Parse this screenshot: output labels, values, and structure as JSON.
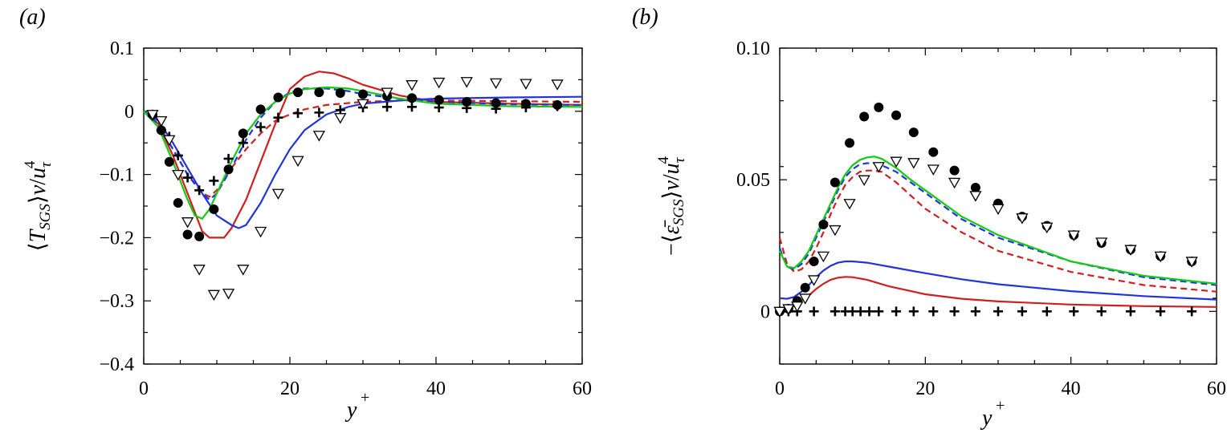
{
  "chart_data": [
    {
      "type": "line",
      "panel_label": "(a)",
      "xlabel": "y+",
      "ylabel": "⟨T_SGS⟩ν/u_τ^4",
      "xlim": [
        0,
        60
      ],
      "ylim": [
        -0.4,
        0.1
      ],
      "x_ticks": [
        0,
        20,
        40,
        60
      ],
      "y_ticks": [
        -0.4,
        -0.3,
        -0.2,
        -0.1,
        0,
        0.1
      ],
      "x_tick_labels": [
        "0",
        "20",
        "40",
        "60"
      ],
      "y_tick_labels": [
        "−0.4",
        "−0.3",
        "−0.2",
        "−0.1",
        "0",
        "0.1"
      ],
      "grid": false,
      "series": [
        {
          "style": "solid",
          "color": "#d11f1f",
          "x": [
            0,
            2,
            4,
            6,
            7,
            8,
            9,
            10,
            11,
            12,
            14,
            16,
            18,
            20,
            22,
            24,
            26,
            28,
            30,
            35,
            40,
            50,
            60
          ],
          "y": [
            0,
            -0.02,
            -0.07,
            -0.13,
            -0.16,
            -0.19,
            -0.2,
            -0.2,
            -0.2,
            -0.185,
            -0.14,
            -0.08,
            -0.02,
            0.035,
            0.055,
            0.063,
            0.06,
            0.052,
            0.042,
            0.025,
            0.015,
            0.012,
            0.01
          ]
        },
        {
          "style": "dashed",
          "color": "#d11f1f",
          "x": [
            0,
            2,
            4,
            6,
            8,
            9,
            10,
            12,
            14,
            16,
            18,
            20,
            22,
            25,
            30,
            35,
            40,
            50,
            60
          ],
          "y": [
            0,
            -0.02,
            -0.06,
            -0.1,
            -0.13,
            -0.135,
            -0.125,
            -0.09,
            -0.06,
            -0.035,
            -0.015,
            -0.005,
            0.003,
            0.01,
            0.015,
            0.017,
            0.017,
            0.016,
            0.015
          ]
        },
        {
          "style": "solid",
          "color": "#2233dd",
          "x": [
            0,
            2,
            4,
            6,
            8,
            10,
            12,
            13,
            14,
            16,
            18,
            20,
            22,
            25,
            28,
            30,
            35,
            40,
            50,
            60
          ],
          "y": [
            0,
            -0.015,
            -0.05,
            -0.09,
            -0.13,
            -0.165,
            -0.18,
            -0.185,
            -0.18,
            -0.145,
            -0.1,
            -0.06,
            -0.03,
            -0.005,
            0.007,
            0.012,
            0.017,
            0.02,
            0.022,
            0.023
          ]
        },
        {
          "style": "dashed",
          "color": "#2233dd",
          "x": [
            0,
            2,
            4,
            6,
            8,
            9,
            10,
            12,
            14,
            16,
            18,
            20,
            22,
            25,
            28,
            30,
            35,
            40,
            50,
            60
          ],
          "y": [
            0,
            -0.02,
            -0.06,
            -0.1,
            -0.13,
            -0.14,
            -0.13,
            -0.09,
            -0.045,
            -0.01,
            0.015,
            0.03,
            0.036,
            0.036,
            0.032,
            0.027,
            0.02,
            0.015,
            0.011,
            0.01
          ]
        },
        {
          "style": "solid",
          "color": "#11cc11",
          "x": [
            0,
            2,
            4,
            6,
            7,
            8,
            9,
            10,
            12,
            14,
            16,
            18,
            20,
            22,
            25,
            28,
            30,
            35,
            40,
            50,
            60
          ],
          "y": [
            0,
            -0.025,
            -0.08,
            -0.14,
            -0.165,
            -0.17,
            -0.155,
            -0.13,
            -0.08,
            -0.035,
            -0.005,
            0.015,
            0.028,
            0.035,
            0.038,
            0.036,
            0.032,
            0.02,
            0.012,
            0.008,
            0.007
          ]
        },
        {
          "style": "filled-circle",
          "color": "#000000",
          "x": [
            1.2,
            2.4,
            3.5,
            4.7,
            6,
            7.6,
            9.6,
            11.6,
            13.6,
            16,
            18.4,
            21.1,
            24,
            26.9,
            30,
            33.3,
            36.7,
            40.4,
            44.2,
            48.2,
            52.3,
            56.6
          ],
          "y": [
            -0.005,
            -0.03,
            -0.08,
            -0.145,
            -0.195,
            -0.198,
            -0.155,
            -0.092,
            -0.035,
            0.003,
            0.022,
            0.03,
            0.03,
            0.029,
            0.027,
            0.024,
            0.021,
            0.018,
            0.015,
            0.013,
            0.012,
            0.01
          ]
        },
        {
          "style": "plus",
          "color": "#000000",
          "x": [
            1.2,
            2.4,
            3.5,
            4.7,
            6,
            7.6,
            9.6,
            11.6,
            13.6,
            16,
            18.4,
            21.1,
            24,
            26.9,
            30,
            33.3,
            36.7,
            40.4,
            44.2,
            48.2,
            52.3,
            56.6
          ],
          "y": [
            -0.007,
            -0.03,
            -0.04,
            -0.07,
            -0.105,
            -0.125,
            -0.11,
            -0.075,
            -0.05,
            -0.025,
            -0.01,
            -0.003,
            -0.002,
            0.002,
            0.006,
            0.007,
            0.007,
            0.006,
            0.005,
            0.004,
            0.006,
            0.008
          ]
        },
        {
          "style": "open-triangle",
          "color": "#000000",
          "x": [
            1.2,
            2.4,
            3.5,
            4.7,
            6,
            7.6,
            9.6,
            11.6,
            13.6,
            16,
            18.4,
            21.1,
            24,
            26.9,
            30,
            33.3,
            36.7,
            40.4,
            44.2,
            48.2,
            52.3,
            56.6
          ],
          "y": [
            -0.005,
            -0.015,
            -0.045,
            -0.1,
            -0.175,
            -0.25,
            -0.29,
            -0.288,
            -0.25,
            -0.19,
            -0.13,
            -0.078,
            -0.038,
            -0.01,
            0.012,
            0.03,
            0.042,
            0.046,
            0.047,
            0.045,
            0.044,
            0.043
          ]
        }
      ]
    },
    {
      "type": "line",
      "panel_label": "(b)",
      "xlabel": "y+",
      "ylabel": "−⟨ε̄_SGS⟩ν/u_τ^4",
      "xlim": [
        0,
        60
      ],
      "ylim": [
        -0.02,
        0.1
      ],
      "x_ticks": [
        0,
        20,
        40,
        60
      ],
      "y_ticks": [
        0,
        0.05,
        0.1
      ],
      "x_tick_labels": [
        "0",
        "20",
        "40",
        "60"
      ],
      "y_tick_labels": [
        "0",
        "0.05",
        "0.10"
      ],
      "grid": false,
      "series": [
        {
          "style": "solid",
          "color": "#d11f1f",
          "x": [
            0,
            1,
            2,
            3,
            4,
            5,
            6,
            7,
            8,
            9,
            10,
            12,
            15,
            20,
            25,
            30,
            40,
            50,
            60
          ],
          "y": [
            0.001,
            0.0012,
            0.002,
            0.004,
            0.006,
            0.0085,
            0.0105,
            0.012,
            0.0128,
            0.0131,
            0.013,
            0.012,
            0.0095,
            0.0065,
            0.0048,
            0.0038,
            0.0026,
            0.002,
            0.0017
          ]
        },
        {
          "style": "dashed",
          "color": "#d11f1f",
          "x": [
            0,
            1,
            2,
            3,
            4,
            5,
            6,
            7,
            8,
            9,
            10,
            11,
            12,
            13,
            14,
            16,
            18,
            20,
            25,
            30,
            40,
            50,
            60
          ],
          "y": [
            0.028,
            0.018,
            0.015,
            0.016,
            0.019,
            0.024,
            0.03,
            0.037,
            0.043,
            0.048,
            0.051,
            0.053,
            0.0535,
            0.0535,
            0.053,
            0.049,
            0.044,
            0.039,
            0.03,
            0.023,
            0.015,
            0.01,
            0.0075
          ]
        },
        {
          "style": "solid",
          "color": "#2233dd",
          "x": [
            0,
            1,
            2,
            3,
            4,
            5,
            6,
            7,
            8,
            9,
            10,
            12,
            15,
            20,
            25,
            30,
            40,
            50,
            60
          ],
          "y": [
            0.005,
            0.0048,
            0.0055,
            0.0075,
            0.01,
            0.013,
            0.0155,
            0.0173,
            0.0185,
            0.019,
            0.019,
            0.0185,
            0.017,
            0.0145,
            0.0122,
            0.0103,
            0.0077,
            0.0058,
            0.0045
          ]
        },
        {
          "style": "dashed",
          "color": "#2233dd",
          "x": [
            0,
            1,
            2,
            3,
            4,
            5,
            6,
            7,
            8,
            9,
            10,
            11,
            12,
            13,
            14,
            16,
            18,
            20,
            25,
            30,
            40,
            50,
            60
          ],
          "y": [
            0.024,
            0.017,
            0.016,
            0.018,
            0.022,
            0.028,
            0.034,
            0.04,
            0.046,
            0.051,
            0.054,
            0.0558,
            0.0563,
            0.0562,
            0.0555,
            0.053,
            0.049,
            0.045,
            0.035,
            0.028,
            0.019,
            0.013,
            0.01
          ]
        },
        {
          "style": "solid",
          "color": "#11cc11",
          "x": [
            0,
            1,
            2,
            3,
            4,
            5,
            6,
            7,
            8,
            9,
            10,
            11,
            12,
            13,
            14,
            16,
            18,
            20,
            25,
            30,
            40,
            50,
            60
          ],
          "y": [
            0.023,
            0.017,
            0.0165,
            0.019,
            0.023,
            0.029,
            0.035,
            0.041,
            0.047,
            0.052,
            0.0555,
            0.0575,
            0.0585,
            0.0588,
            0.058,
            0.0545,
            0.05,
            0.046,
            0.036,
            0.029,
            0.019,
            0.0135,
            0.0105
          ]
        },
        {
          "style": "filled-circle",
          "color": "#000000",
          "x": [
            0,
            1.2,
            2.4,
            3.5,
            4.7,
            6,
            7.6,
            9.6,
            11.6,
            13.6,
            16,
            18.4,
            21.1,
            24,
            26.9,
            30,
            33.3,
            36.7,
            40.4,
            44.2,
            48.2,
            52.3,
            56.6
          ],
          "y": [
            0,
            0.001,
            0.004,
            0.009,
            0.019,
            0.033,
            0.049,
            0.064,
            0.074,
            0.0775,
            0.0745,
            0.068,
            0.0605,
            0.0535,
            0.047,
            0.041,
            0.036,
            0.0325,
            0.029,
            0.026,
            0.0235,
            0.021,
            0.019
          ]
        },
        {
          "style": "plus",
          "color": "#000000",
          "x": [
            1.2,
            2.4,
            4.7,
            7.6,
            9,
            10,
            11.1,
            12.3,
            13.6,
            16,
            18.4,
            21.1,
            24,
            26.9,
            30,
            33.3,
            36.7,
            40.4,
            44.2,
            48.2,
            52.3,
            56.6
          ],
          "y": [
            0,
            0,
            0,
            0,
            0,
            0,
            0,
            0,
            0,
            0,
            0,
            0,
            0,
            0,
            0,
            0,
            0,
            0,
            0,
            0,
            0,
            0
          ]
        },
        {
          "style": "open-triangle",
          "color": "#000000",
          "x": [
            0,
            1.2,
            2.4,
            3.5,
            4.7,
            6,
            7.6,
            9.6,
            11.6,
            13.6,
            16,
            18.4,
            21.1,
            24,
            26.9,
            30,
            33.3,
            36.7,
            40.4,
            44.2,
            48.2,
            52.3,
            56.6
          ],
          "y": [
            0,
            0.001,
            0.002,
            0.005,
            0.012,
            0.021,
            0.031,
            0.041,
            0.05,
            0.055,
            0.057,
            0.0565,
            0.054,
            0.049,
            0.044,
            0.039,
            0.0355,
            0.032,
            0.029,
            0.0263,
            0.0235,
            0.021,
            0.019
          ]
        }
      ]
    }
  ]
}
